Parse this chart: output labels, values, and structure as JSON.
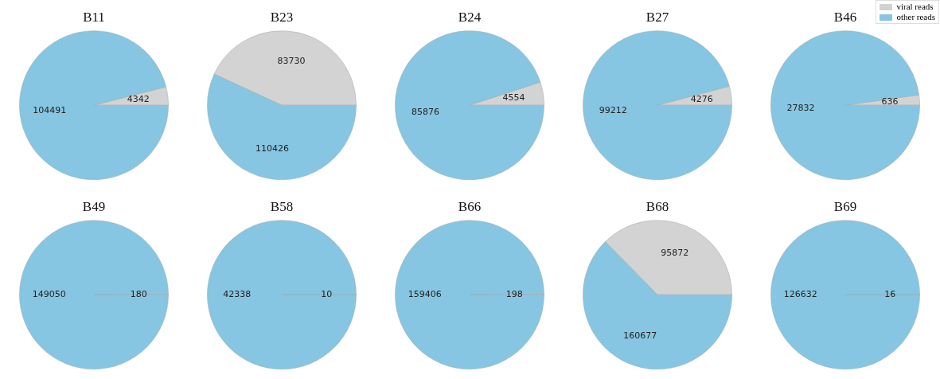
{
  "chart_data": [
    {
      "type": "pie",
      "title": "B11",
      "categories": [
        null,
        null
      ],
      "values": [
        4342,
        104491
      ],
      "colors": [
        "#d3d3d3",
        "#87c6e2"
      ],
      "data_labels": true
    },
    {
      "type": "pie",
      "title": "B23",
      "categories": [
        null,
        null
      ],
      "values": [
        83730,
        110426
      ],
      "colors": [
        "#d3d3d3",
        "#87c6e2"
      ],
      "data_labels": true
    },
    {
      "type": "pie",
      "title": "B24",
      "categories": [
        null,
        null
      ],
      "values": [
        4554,
        85876
      ],
      "colors": [
        "#d3d3d3",
        "#87c6e2"
      ],
      "data_labels": true
    },
    {
      "type": "pie",
      "title": "B27",
      "categories": [
        null,
        null
      ],
      "values": [
        4276,
        99212
      ],
      "colors": [
        "#d3d3d3",
        "#87c6e2"
      ],
      "data_labels": true
    },
    {
      "type": "pie",
      "title": "B46",
      "categories": [
        "viral reads",
        "other reads"
      ],
      "values": [
        636,
        27832
      ],
      "colors": [
        "#d3d3d3",
        "#87c6e2"
      ],
      "data_labels": true,
      "legend": "top right"
    },
    {
      "type": "pie",
      "title": "B49",
      "categories": [
        null,
        null
      ],
      "values": [
        180,
        149050
      ],
      "colors": [
        "#d3d3d3",
        "#87c6e2"
      ],
      "data_labels": true
    },
    {
      "type": "pie",
      "title": "B58",
      "categories": [
        null,
        null
      ],
      "values": [
        10,
        42338
      ],
      "colors": [
        "#d3d3d3",
        "#87c6e2"
      ],
      "data_labels": true
    },
    {
      "type": "pie",
      "title": "B66",
      "categories": [
        null,
        null
      ],
      "values": [
        198,
        159406
      ],
      "colors": [
        "#d3d3d3",
        "#87c6e2"
      ],
      "data_labels": true
    },
    {
      "type": "pie",
      "title": "B68",
      "categories": [
        null,
        null
      ],
      "values": [
        95872,
        160677
      ],
      "colors": [
        "#d3d3d3",
        "#87c6e2"
      ],
      "data_labels": true
    },
    {
      "type": "pie",
      "title": "B69",
      "categories": [
        null,
        null
      ],
      "values": [
        16,
        126632
      ],
      "colors": [
        "#d3d3d3",
        "#87c6e2"
      ],
      "data_labels": true
    }
  ]
}
